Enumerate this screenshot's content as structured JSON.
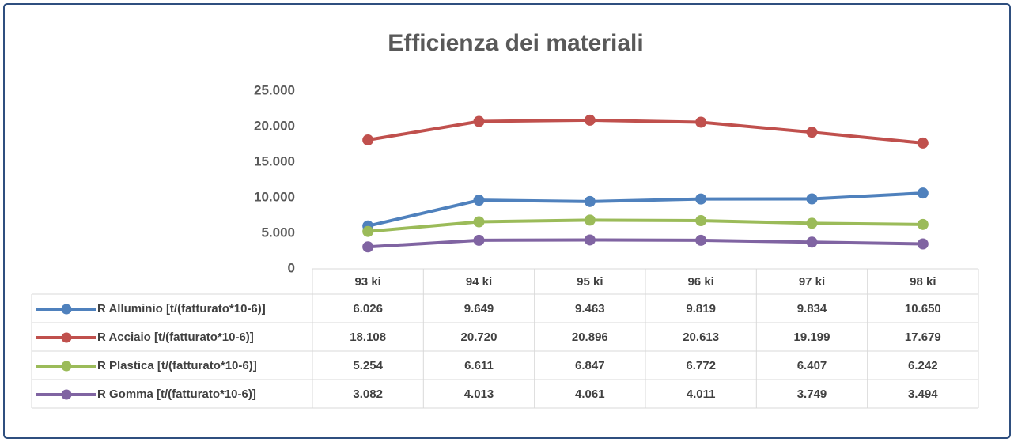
{
  "chart_data": {
    "type": "line",
    "title": "Efficienza dei materiali",
    "categories": [
      "93 ki",
      "94 ki",
      "95 ki",
      "96 ki",
      "97 ki",
      "98 ki"
    ],
    "series": [
      {
        "name": "R Alluminio [t/(fatturato*10-6)]",
        "color": "#4f81bd",
        "values": [
          6026,
          9649,
          9463,
          9819,
          9834,
          10650
        ],
        "value_labels": [
          "6.026",
          "9.649",
          "9.463",
          "9.819",
          "9.834",
          "10.650"
        ]
      },
      {
        "name": "R Acciaio [t/(fatturato*10-6)]",
        "color": "#c0504d",
        "values": [
          18108,
          20720,
          20896,
          20613,
          19199,
          17679
        ],
        "value_labels": [
          "18.108",
          "20.720",
          "20.896",
          "20.613",
          "19.199",
          "17.679"
        ]
      },
      {
        "name": "R Plastica [t/(fatturato*10-6)]",
        "color": "#9bbb59",
        "values": [
          5254,
          6611,
          6847,
          6772,
          6407,
          6242
        ],
        "value_labels": [
          "5.254",
          "6.611",
          "6.847",
          "6.772",
          "6.407",
          "6.242"
        ]
      },
      {
        "name": "R Gomma [t/(fatturato*10-6)]",
        "color": "#8064a2",
        "values": [
          3082,
          4013,
          4061,
          4011,
          3749,
          3494
        ],
        "value_labels": [
          "3.082",
          "4.013",
          "4.061",
          "4.011",
          "3.749",
          "3.494"
        ]
      }
    ],
    "ylim": [
      0,
      25000
    ],
    "yticks": [
      0,
      {
        "value": 5000,
        "label": "5.000"
      },
      {
        "value": 10000,
        "label": "10.000"
      },
      {
        "value": 15000,
        "label": "15.000"
      },
      {
        "value": 20000,
        "label": "20.000"
      },
      {
        "value": 25000,
        "label": "25.000"
      }
    ],
    "grid": false
  }
}
